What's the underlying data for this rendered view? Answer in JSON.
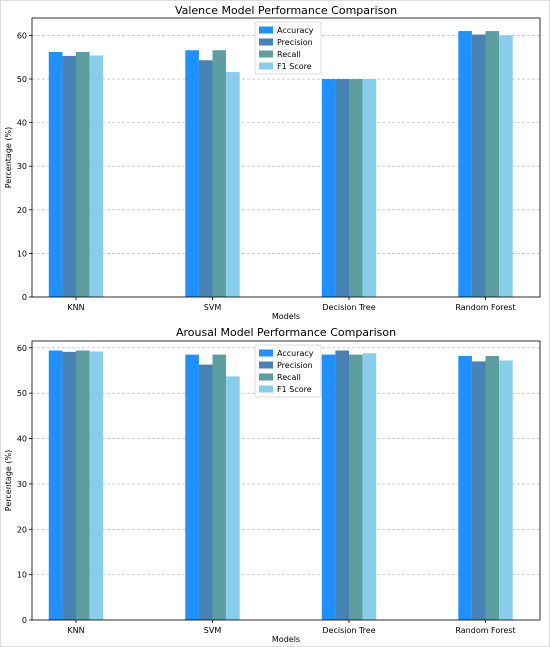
{
  "chart_data": [
    {
      "type": "bar",
      "title": "Valence Model Performance Comparison",
      "xlabel": "Models",
      "ylabel": "Percentage (%)",
      "ylim": [
        0,
        64
      ],
      "yticks": [
        0,
        10,
        20,
        30,
        40,
        50,
        60
      ],
      "grid": "y-dashed",
      "legend_position": "top-center",
      "categories": [
        "KNN",
        "SVM",
        "Decision Tree",
        "Random Forest"
      ],
      "series": [
        {
          "name": "Accuracy",
          "color": "#1e90ff",
          "values": [
            56.2,
            56.6,
            50.0,
            61.0
          ]
        },
        {
          "name": "Precision",
          "color": "#4682b4",
          "values": [
            55.3,
            54.3,
            50.0,
            60.2
          ]
        },
        {
          "name": "Recall",
          "color": "#5f9ea0",
          "values": [
            56.2,
            56.6,
            50.0,
            61.0
          ]
        },
        {
          "name": "F1 Score",
          "color": "#87ceeb",
          "values": [
            55.4,
            51.6,
            50.0,
            60.0
          ]
        }
      ]
    },
    {
      "type": "bar",
      "title": "Arousal Model Performance Comparison",
      "xlabel": "Models",
      "ylabel": "Percentage (%)",
      "ylim": [
        0,
        61.5
      ],
      "yticks": [
        0,
        10,
        20,
        30,
        40,
        50,
        60
      ],
      "grid": "y-dashed",
      "legend_position": "top-center",
      "categories": [
        "KNN",
        "SVM",
        "Decision Tree",
        "Random Forest"
      ],
      "series": [
        {
          "name": "Accuracy",
          "color": "#1e90ff",
          "values": [
            59.4,
            58.5,
            58.5,
            58.2
          ]
        },
        {
          "name": "Precision",
          "color": "#4682b4",
          "values": [
            59.1,
            56.3,
            59.4,
            57.0
          ]
        },
        {
          "name": "Recall",
          "color": "#5f9ea0",
          "values": [
            59.4,
            58.5,
            58.5,
            58.2
          ]
        },
        {
          "name": "F1 Score",
          "color": "#87ceeb",
          "values": [
            59.2,
            53.7,
            58.8,
            57.2
          ]
        }
      ]
    }
  ]
}
